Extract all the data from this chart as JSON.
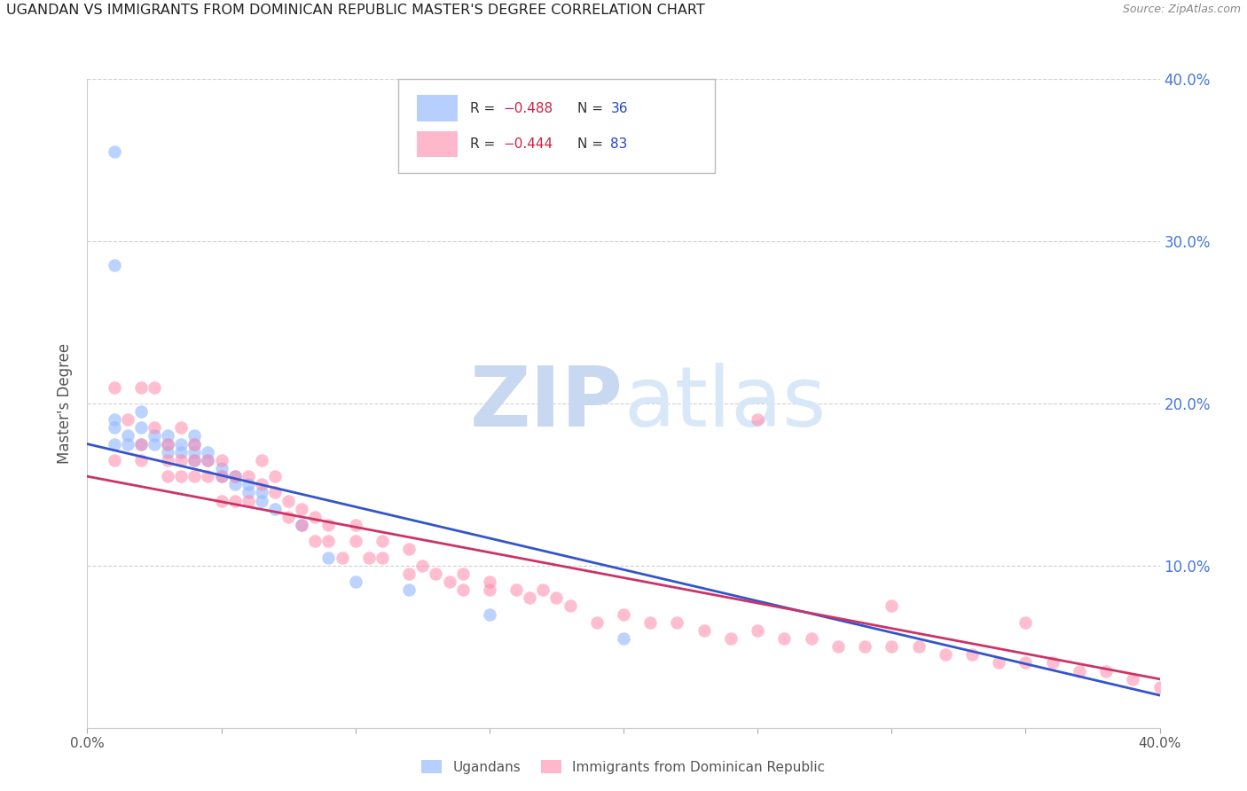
{
  "title": "UGANDAN VS IMMIGRANTS FROM DOMINICAN REPUBLIC MASTER'S DEGREE CORRELATION CHART",
  "source": "Source: ZipAtlas.com",
  "ylabel": "Master's Degree",
  "xlim": [
    0.0,
    0.4
  ],
  "ylim": [
    0.0,
    0.4
  ],
  "blue_color": "#99bbff",
  "pink_color": "#ff88aa",
  "trend_blue": "#3355cc",
  "trend_pink": "#cc3366",
  "watermark_zip_color": "#c8d8f0",
  "watermark_atlas_color": "#d8e8f8",
  "background_color": "#ffffff",
  "grid_color": "#cccccc",
  "ugandan_x": [
    0.01,
    0.01,
    0.01,
    0.015,
    0.015,
    0.02,
    0.02,
    0.02,
    0.025,
    0.025,
    0.03,
    0.03,
    0.03,
    0.035,
    0.035,
    0.04,
    0.04,
    0.04,
    0.04,
    0.045,
    0.045,
    0.05,
    0.05,
    0.055,
    0.055,
    0.06,
    0.06,
    0.065,
    0.065,
    0.07,
    0.08,
    0.09,
    0.1,
    0.12,
    0.15,
    0.2
  ],
  "ugandan_y": [
    0.175,
    0.185,
    0.19,
    0.175,
    0.18,
    0.175,
    0.185,
    0.195,
    0.175,
    0.18,
    0.17,
    0.175,
    0.18,
    0.17,
    0.175,
    0.165,
    0.17,
    0.175,
    0.18,
    0.165,
    0.17,
    0.155,
    0.16,
    0.155,
    0.15,
    0.145,
    0.15,
    0.14,
    0.145,
    0.135,
    0.125,
    0.105,
    0.09,
    0.085,
    0.07,
    0.055
  ],
  "ugandan_outlier_x": [
    0.01
  ],
  "ugandan_outlier_y": [
    0.355
  ],
  "ugandan_outlier2_x": [
    0.01
  ],
  "ugandan_outlier2_y": [
    0.285
  ],
  "dominican_x": [
    0.01,
    0.01,
    0.015,
    0.02,
    0.02,
    0.02,
    0.025,
    0.025,
    0.03,
    0.03,
    0.03,
    0.035,
    0.035,
    0.035,
    0.04,
    0.04,
    0.04,
    0.045,
    0.045,
    0.05,
    0.05,
    0.05,
    0.055,
    0.055,
    0.06,
    0.06,
    0.065,
    0.065,
    0.07,
    0.07,
    0.075,
    0.075,
    0.08,
    0.08,
    0.085,
    0.085,
    0.09,
    0.09,
    0.095,
    0.1,
    0.1,
    0.105,
    0.11,
    0.11,
    0.12,
    0.12,
    0.125,
    0.13,
    0.135,
    0.14,
    0.14,
    0.15,
    0.15,
    0.16,
    0.165,
    0.17,
    0.175,
    0.18,
    0.19,
    0.2,
    0.21,
    0.22,
    0.23,
    0.24,
    0.25,
    0.26,
    0.27,
    0.28,
    0.29,
    0.3,
    0.31,
    0.32,
    0.33,
    0.34,
    0.35,
    0.36,
    0.37,
    0.38,
    0.39,
    0.4,
    0.35,
    0.3,
    0.25
  ],
  "dominican_y": [
    0.165,
    0.21,
    0.19,
    0.21,
    0.175,
    0.165,
    0.21,
    0.185,
    0.175,
    0.165,
    0.155,
    0.185,
    0.165,
    0.155,
    0.175,
    0.165,
    0.155,
    0.165,
    0.155,
    0.155,
    0.14,
    0.165,
    0.155,
    0.14,
    0.155,
    0.14,
    0.165,
    0.15,
    0.145,
    0.155,
    0.14,
    0.13,
    0.135,
    0.125,
    0.13,
    0.115,
    0.125,
    0.115,
    0.105,
    0.125,
    0.115,
    0.105,
    0.115,
    0.105,
    0.095,
    0.11,
    0.1,
    0.095,
    0.09,
    0.085,
    0.095,
    0.085,
    0.09,
    0.085,
    0.08,
    0.085,
    0.08,
    0.075,
    0.065,
    0.07,
    0.065,
    0.065,
    0.06,
    0.055,
    0.06,
    0.055,
    0.055,
    0.05,
    0.05,
    0.05,
    0.05,
    0.045,
    0.045,
    0.04,
    0.04,
    0.04,
    0.035,
    0.035,
    0.03,
    0.025,
    0.065,
    0.075,
    0.19
  ]
}
